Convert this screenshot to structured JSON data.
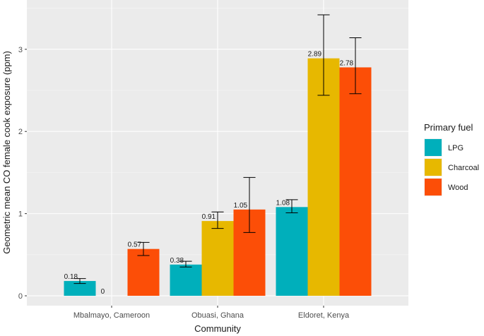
{
  "chart_data": {
    "type": "bar",
    "title": "",
    "xlabel": "Community",
    "ylabel": "Geometric mean CO female cook exposure (ppm)",
    "categories": [
      "Mbalmayo, Cameroon",
      "Obuasi, Ghana",
      "Eldoret, Kenya"
    ],
    "series": [
      {
        "name": "LPG",
        "color": "#00AFBB",
        "values": [
          0.18,
          0.38,
          1.08
        ],
        "error_low": [
          0.15,
          0.35,
          1.01
        ],
        "error_high": [
          0.21,
          0.42,
          1.17
        ],
        "labels": [
          "0.18",
          "0.38",
          "1.08"
        ]
      },
      {
        "name": "Charcoal",
        "color": "#E7B800",
        "values": [
          0,
          0.91,
          2.89
        ],
        "error_low": [
          null,
          0.82,
          2.44
        ],
        "error_high": [
          null,
          1.02,
          3.42
        ],
        "labels": [
          "0",
          "0.91",
          "2.89"
        ]
      },
      {
        "name": "Wood",
        "color": "#FC4E07",
        "values": [
          0.57,
          1.05,
          2.78
        ],
        "error_low": [
          0.49,
          0.77,
          2.46
        ],
        "error_high": [
          0.65,
          1.44,
          3.14
        ],
        "labels": [
          "0.57",
          "1.05",
          "2.78"
        ]
      }
    ],
    "ylim": [
      -0.12,
      3.6
    ],
    "yticks": [
      0,
      1,
      2,
      3
    ],
    "grid": true,
    "legend": {
      "title": "Primary fuel",
      "position": "right"
    }
  }
}
